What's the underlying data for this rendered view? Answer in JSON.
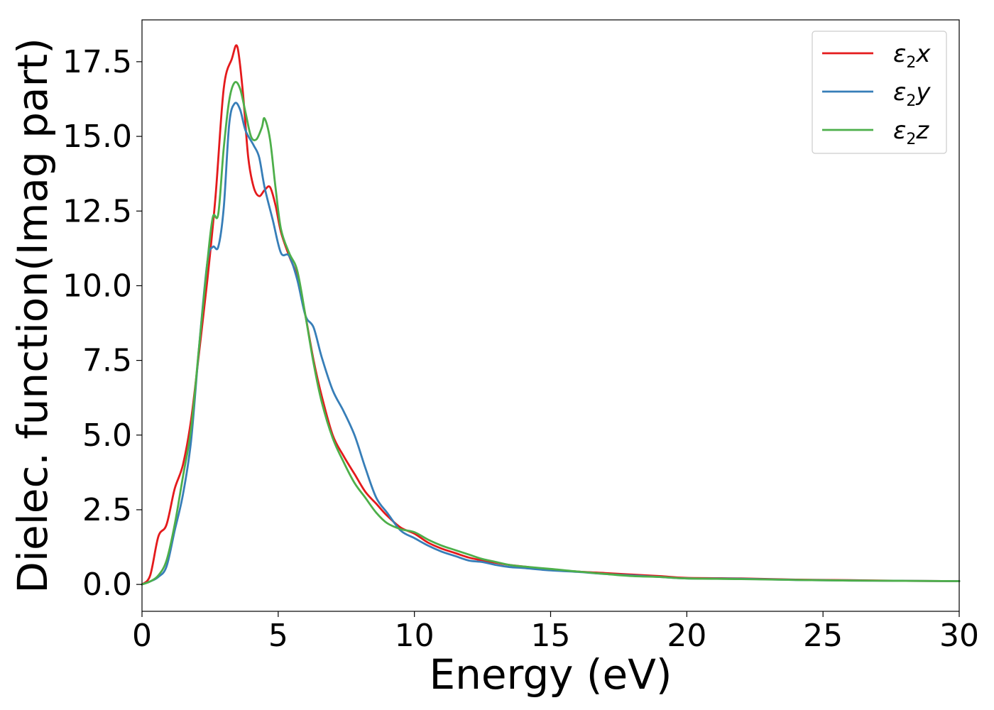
{
  "chart_data": {
    "type": "line",
    "title": "",
    "xlabel": "Energy (eV)",
    "ylabel": "Dielec. function(Imag part)",
    "xlim": [
      0,
      30
    ],
    "ylim": [
      -0.9,
      18.9
    ],
    "xticks": [
      0,
      5,
      10,
      15,
      20,
      25,
      30
    ],
    "xtick_labels": [
      "0",
      "5",
      "10",
      "15",
      "20",
      "25",
      "30"
    ],
    "yticks": [
      0,
      2.5,
      5,
      7.5,
      10,
      12.5,
      15,
      17.5
    ],
    "ytick_labels": [
      "0.0",
      "2.5",
      "5.0",
      "7.5",
      "10.0",
      "12.5",
      "15.0",
      "17.5"
    ],
    "grid": false,
    "legend_position": "top-right",
    "series": [
      {
        "name": "ε2x",
        "legend_main": "ε",
        "legend_sub": "2",
        "legend_tail": "x",
        "color": "#e41a1c",
        "points": [
          [
            0,
            0
          ],
          [
            0.3,
            0.3
          ],
          [
            0.6,
            1.6
          ],
          [
            0.9,
            2.0
          ],
          [
            1.2,
            3.2
          ],
          [
            1.5,
            4.0
          ],
          [
            1.8,
            5.5
          ],
          [
            2.1,
            7.8
          ],
          [
            2.4,
            10.2
          ],
          [
            2.7,
            13.0
          ],
          [
            3.0,
            16.6
          ],
          [
            3.3,
            17.6
          ],
          [
            3.5,
            18.0
          ],
          [
            3.7,
            16.5
          ],
          [
            3.9,
            14.3
          ],
          [
            4.1,
            13.3
          ],
          [
            4.3,
            13.0
          ],
          [
            4.5,
            13.2
          ],
          [
            4.7,
            13.3
          ],
          [
            4.9,
            12.7
          ],
          [
            5.1,
            11.8
          ],
          [
            5.4,
            11.0
          ],
          [
            5.7,
            10.3
          ],
          [
            6.0,
            9.0
          ],
          [
            6.3,
            7.5
          ],
          [
            6.6,
            6.3
          ],
          [
            7.0,
            5.0
          ],
          [
            7.4,
            4.3
          ],
          [
            7.8,
            3.7
          ],
          [
            8.2,
            3.1
          ],
          [
            8.6,
            2.7
          ],
          [
            9.0,
            2.3
          ],
          [
            9.5,
            1.9
          ],
          [
            10.0,
            1.7
          ],
          [
            10.5,
            1.4
          ],
          [
            11.0,
            1.2
          ],
          [
            11.5,
            1.05
          ],
          [
            12.0,
            0.9
          ],
          [
            12.5,
            0.8
          ],
          [
            13.0,
            0.72
          ],
          [
            13.5,
            0.65
          ],
          [
            14.0,
            0.6
          ],
          [
            15.0,
            0.5
          ],
          [
            16.0,
            0.43
          ],
          [
            17.0,
            0.38
          ],
          [
            18.0,
            0.33
          ],
          [
            19.0,
            0.28
          ],
          [
            20.0,
            0.22
          ],
          [
            22.0,
            0.2
          ],
          [
            24.0,
            0.16
          ],
          [
            26.0,
            0.14
          ],
          [
            28.0,
            0.12
          ],
          [
            30.0,
            0.11
          ]
        ]
      },
      {
        "name": "ε2y",
        "legend_main": "ε",
        "legend_sub": "2",
        "legend_tail": "y",
        "color": "#377eb8",
        "points": [
          [
            0,
            0
          ],
          [
            0.3,
            0.1
          ],
          [
            0.6,
            0.25
          ],
          [
            0.9,
            0.6
          ],
          [
            1.2,
            1.8
          ],
          [
            1.5,
            3.0
          ],
          [
            1.8,
            4.8
          ],
          [
            2.1,
            8.0
          ],
          [
            2.4,
            10.8
          ],
          [
            2.6,
            11.3
          ],
          [
            2.8,
            11.3
          ],
          [
            3.0,
            12.6
          ],
          [
            3.2,
            15.4
          ],
          [
            3.4,
            16.1
          ],
          [
            3.6,
            15.9
          ],
          [
            3.8,
            15.2
          ],
          [
            4.1,
            14.7
          ],
          [
            4.3,
            14.3
          ],
          [
            4.5,
            13.3
          ],
          [
            4.8,
            12.2
          ],
          [
            5.1,
            11.1
          ],
          [
            5.4,
            11.0
          ],
          [
            5.7,
            10.2
          ],
          [
            6.0,
            9.0
          ],
          [
            6.3,
            8.6
          ],
          [
            6.6,
            7.6
          ],
          [
            7.0,
            6.5
          ],
          [
            7.4,
            5.8
          ],
          [
            7.8,
            5.0
          ],
          [
            8.2,
            3.9
          ],
          [
            8.6,
            2.9
          ],
          [
            9.0,
            2.4
          ],
          [
            9.5,
            1.8
          ],
          [
            10.0,
            1.55
          ],
          [
            10.5,
            1.3
          ],
          [
            11.0,
            1.1
          ],
          [
            11.5,
            0.95
          ],
          [
            12.0,
            0.8
          ],
          [
            12.5,
            0.75
          ],
          [
            13.0,
            0.65
          ],
          [
            13.5,
            0.58
          ],
          [
            14.0,
            0.55
          ],
          [
            15.0,
            0.47
          ],
          [
            16.0,
            0.42
          ],
          [
            17.0,
            0.35
          ],
          [
            18.0,
            0.3
          ],
          [
            19.0,
            0.25
          ],
          [
            20.0,
            0.2
          ],
          [
            22.0,
            0.19
          ],
          [
            24.0,
            0.15
          ],
          [
            26.0,
            0.13
          ],
          [
            28.0,
            0.12
          ],
          [
            30.0,
            0.11
          ]
        ]
      },
      {
        "name": "ε2z",
        "legend_main": "ε",
        "legend_sub": "2",
        "legend_tail": "z",
        "color": "#4daf4a",
        "points": [
          [
            0,
            0
          ],
          [
            0.3,
            0.1
          ],
          [
            0.6,
            0.3
          ],
          [
            0.9,
            0.8
          ],
          [
            1.2,
            2.0
          ],
          [
            1.5,
            3.6
          ],
          [
            1.8,
            5.2
          ],
          [
            2.1,
            8.0
          ],
          [
            2.4,
            10.8
          ],
          [
            2.6,
            12.3
          ],
          [
            2.8,
            12.4
          ],
          [
            3.0,
            14.6
          ],
          [
            3.2,
            16.2
          ],
          [
            3.4,
            16.8
          ],
          [
            3.6,
            16.6
          ],
          [
            3.8,
            15.8
          ],
          [
            4.0,
            15.0
          ],
          [
            4.2,
            14.9
          ],
          [
            4.4,
            15.3
          ],
          [
            4.5,
            15.6
          ],
          [
            4.7,
            14.9
          ],
          [
            4.9,
            13.3
          ],
          [
            5.1,
            11.9
          ],
          [
            5.4,
            11.1
          ],
          [
            5.7,
            10.5
          ],
          [
            6.0,
            9.0
          ],
          [
            6.3,
            7.4
          ],
          [
            6.6,
            6.1
          ],
          [
            7.0,
            4.9
          ],
          [
            7.4,
            4.1
          ],
          [
            7.8,
            3.4
          ],
          [
            8.2,
            2.9
          ],
          [
            8.6,
            2.4
          ],
          [
            9.0,
            2.05
          ],
          [
            9.5,
            1.85
          ],
          [
            10.0,
            1.75
          ],
          [
            10.5,
            1.5
          ],
          [
            11.0,
            1.3
          ],
          [
            11.5,
            1.15
          ],
          [
            12.0,
            1.0
          ],
          [
            12.5,
            0.85
          ],
          [
            13.0,
            0.75
          ],
          [
            13.5,
            0.65
          ],
          [
            14.0,
            0.6
          ],
          [
            15.0,
            0.52
          ],
          [
            16.0,
            0.43
          ],
          [
            17.0,
            0.35
          ],
          [
            18.0,
            0.28
          ],
          [
            19.0,
            0.25
          ],
          [
            20.0,
            0.2
          ],
          [
            22.0,
            0.18
          ],
          [
            24.0,
            0.15
          ],
          [
            26.0,
            0.13
          ],
          [
            28.0,
            0.12
          ],
          [
            30.0,
            0.11
          ]
        ]
      }
    ]
  }
}
